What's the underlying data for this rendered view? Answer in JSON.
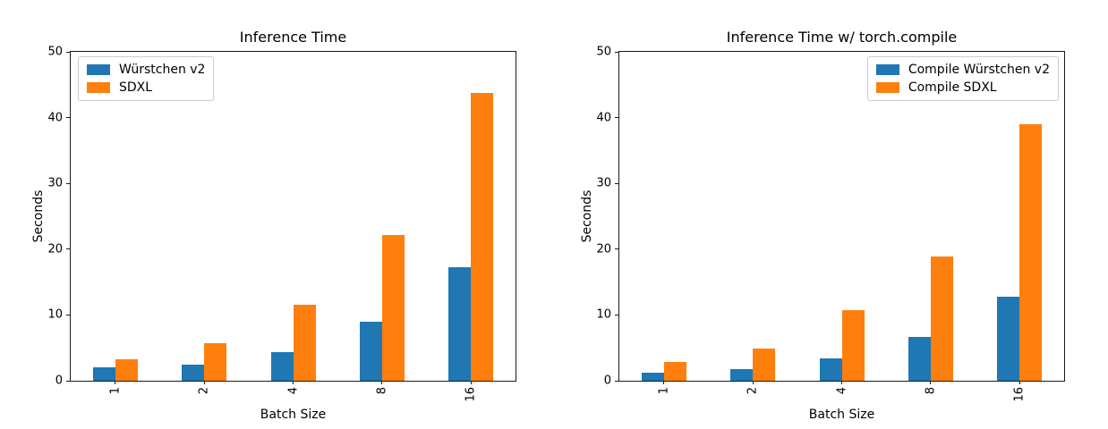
{
  "figure": {
    "background": "#ffffff",
    "series_colors": {
      "blue": "#1f77b4",
      "orange": "#ff7f0e"
    }
  },
  "chart_data": [
    {
      "type": "bar",
      "title": "Inference Time",
      "xlabel": "Batch Size",
      "ylabel": "Seconds",
      "categories": [
        "1",
        "2",
        "4",
        "8",
        "16"
      ],
      "ylim": [
        0,
        50
      ],
      "yticks": [
        0,
        10,
        20,
        30,
        40,
        50
      ],
      "grid": false,
      "legend_position": "upper left",
      "series": [
        {
          "name": "Würstchen v2",
          "color": "#1f77b4",
          "values": [
            2.0,
            2.4,
            4.4,
            9.0,
            17.3
          ]
        },
        {
          "name": "SDXL",
          "color": "#ff7f0e",
          "values": [
            3.3,
            5.7,
            11.6,
            22.2,
            43.8
          ]
        }
      ]
    },
    {
      "type": "bar",
      "title": "Inference Time w/ torch.compile",
      "xlabel": "Batch Size",
      "ylabel": "Seconds",
      "categories": [
        "1",
        "2",
        "4",
        "8",
        "16"
      ],
      "ylim": [
        0,
        50
      ],
      "yticks": [
        0,
        10,
        20,
        30,
        40,
        50
      ],
      "grid": false,
      "legend_position": "upper right",
      "series": [
        {
          "name": "Compile Würstchen v2",
          "color": "#1f77b4",
          "values": [
            1.2,
            1.8,
            3.4,
            6.6,
            12.8
          ]
        },
        {
          "name": "Compile SDXL",
          "color": "#ff7f0e",
          "values": [
            2.8,
            4.9,
            10.8,
            18.9,
            39.0
          ]
        }
      ]
    }
  ]
}
